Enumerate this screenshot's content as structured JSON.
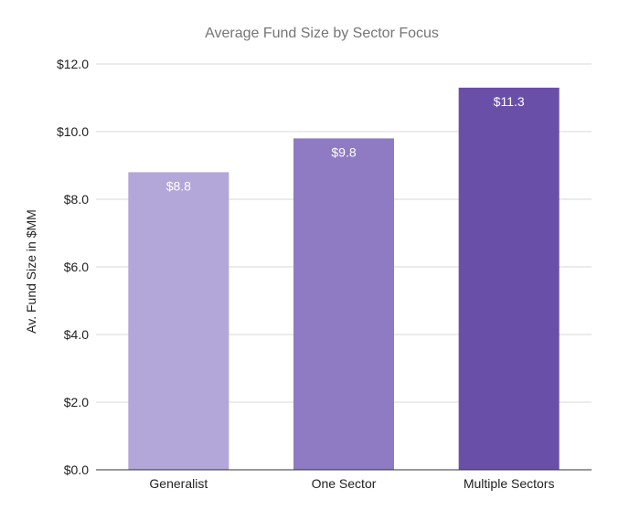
{
  "chart_data": {
    "type": "bar",
    "title": "Average Fund Size by Sector Focus",
    "xlabel": "",
    "ylabel": "Av. Fund Size in $MM",
    "categories": [
      "Generalist",
      "One Sector",
      "Multiple Sectors"
    ],
    "values": [
      8.8,
      9.8,
      11.3
    ],
    "data_labels": [
      "$8.8",
      "$9.8",
      "$11.3"
    ],
    "bar_colors": [
      "#b3a6d9",
      "#8e7bc3",
      "#6a4fa8"
    ],
    "ylim": [
      0,
      12
    ],
    "yticks": [
      0,
      2,
      4,
      6,
      8,
      10,
      12
    ],
    "ytick_labels": [
      "$0.0",
      "$2.0",
      "$4.0",
      "$6.0",
      "$8.0",
      "$10.0",
      "$12.0"
    ],
    "grid": true,
    "legend": "none"
  }
}
